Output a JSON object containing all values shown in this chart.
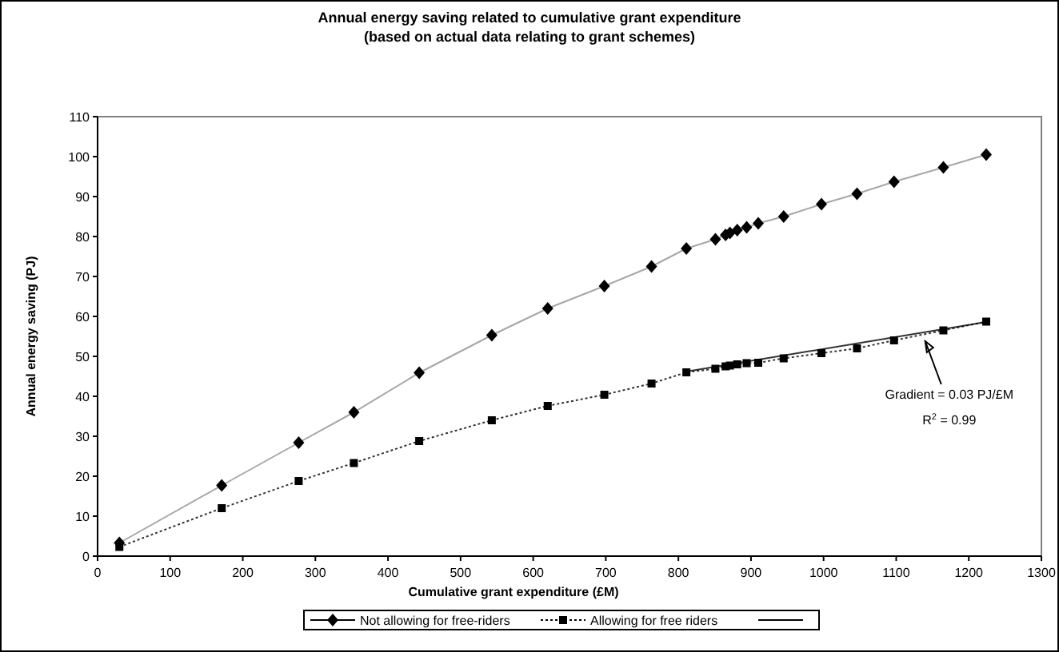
{
  "chart_data": {
    "type": "line",
    "title": "Annual energy saving related to cumulative grant expenditure",
    "subtitle": "(based on actual data relating to grant schemes)",
    "xlabel": "Cumulative grant expenditure (£M)",
    "ylabel": "Annual energy saving (PJ)",
    "x": [
      30,
      171,
      277,
      353,
      443,
      543,
      620,
      698,
      763,
      811,
      851,
      865,
      871,
      881,
      894,
      910,
      945,
      997,
      1046,
      1097,
      1165,
      1224
    ],
    "series": [
      {
        "name": "Not allowing for free-riders",
        "color": "#000000",
        "marker": "diamond",
        "line_style": "solid",
        "values": [
          3.3,
          17.7,
          28.4,
          36,
          45.9,
          55.3,
          62,
          67.6,
          72.5,
          77,
          79.3,
          80.4,
          80.9,
          81.6,
          82.3,
          83.3,
          85,
          88.1,
          90.7,
          93.7,
          97.3,
          100.5
        ]
      },
      {
        "name": "Allowing for free riders",
        "color": "#000000",
        "marker": "square",
        "line_style": "dotted",
        "values": [
          2.3,
          12,
          18.8,
          23.3,
          28.8,
          34,
          37.6,
          40.4,
          43.2,
          46,
          46.9,
          47.5,
          47.7,
          48,
          48.3,
          48.4,
          49.5,
          50.8,
          52,
          54,
          56.5,
          58.7
        ]
      },
      {
        "type": "line",
        "color": "#000000",
        "marker": "none",
        "line_style": "solid",
        "x": [
          811,
          1224
        ],
        "values": [
          46.2,
          58.6
        ]
      }
    ],
    "xlim": [
      0,
      1300
    ],
    "xticks": [
      0,
      100,
      200,
      300,
      400,
      500,
      600,
      700,
      800,
      900,
      1000,
      1100,
      1200,
      1300
    ],
    "ylim": [
      0,
      110
    ],
    "yticks": [
      0,
      10,
      20,
      30,
      40,
      50,
      60,
      70,
      80,
      90,
      100,
      110
    ],
    "grid": false,
    "legend": "bottom",
    "annotations": [
      {
        "text": "Gradient = 0.03 PJ/£M",
        "x": 1140,
        "y": 55
      },
      "R$^{2}$ = 0.99"
    ]
  }
}
